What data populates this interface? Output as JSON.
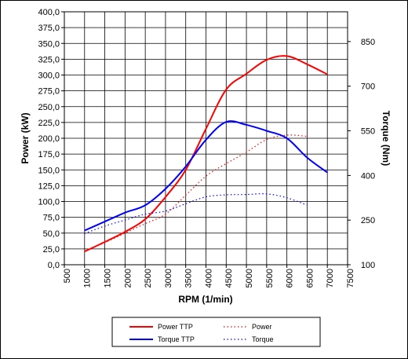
{
  "chart_data": {
    "type": "line",
    "xlabel": "RPM (1/min)",
    "ylabel": "Power (kW)",
    "y2label": "Torque (Nm)",
    "xlim": [
      500,
      7500
    ],
    "ylim": [
      0,
      400
    ],
    "y2lim": [
      100,
      950
    ],
    "x_ticks": [
      "500",
      "1000",
      "1500",
      "2000",
      "2500",
      "3000",
      "3500",
      "4000",
      "4500",
      "5000",
      "5500",
      "6000",
      "6500",
      "7000",
      "7500"
    ],
    "y_ticks": [
      "0,0",
      "25,0",
      "50,0",
      "75,0",
      "100,0",
      "125,0",
      "150,0",
      "175,0",
      "200,0",
      "225,0",
      "250,0",
      "275,0",
      "300,0",
      "325,0",
      "350,0",
      "375,0",
      "400,0"
    ],
    "y2_ticks": [
      "100",
      "250",
      "400",
      "550",
      "700",
      "850"
    ],
    "grid": true,
    "legend": "bottom",
    "series": [
      {
        "name": "Power TTP",
        "axis": "left",
        "color": "#ff0000",
        "style": "solid",
        "x": [
          1000,
          1500,
          2000,
          2500,
          3000,
          3500,
          4000,
          4500,
          5000,
          5500,
          6000,
          6500,
          7000
        ],
        "y": [
          21,
          36,
          52,
          72,
          107,
          150,
          215,
          277,
          302,
          324,
          330,
          317,
          301
        ]
      },
      {
        "name": "Power",
        "axis": "left",
        "color": "#ff0000",
        "style": "dotted",
        "x": [
          1000,
          1500,
          2000,
          2500,
          3000,
          3500,
          4000,
          4500,
          5000,
          5500,
          6000,
          6500
        ],
        "y": [
          22,
          35,
          50,
          65,
          80,
          110,
          140,
          160,
          178,
          198,
          205,
          203
        ]
      },
      {
        "name": "Torque TTP",
        "axis": "right",
        "color": "#0000ff",
        "style": "solid",
        "x": [
          1000,
          1500,
          2000,
          2500,
          3000,
          3500,
          4000,
          4500,
          5000,
          5500,
          6000,
          6500,
          7000
        ],
        "y": [
          215,
          245,
          275,
          300,
          355,
          430,
          520,
          580,
          570,
          550,
          525,
          460,
          410
        ]
      },
      {
        "name": "Torque",
        "axis": "right",
        "color": "#0000ff",
        "style": "dotted",
        "x": [
          1000,
          1500,
          2000,
          2500,
          3000,
          3500,
          4000,
          4500,
          5000,
          5500,
          6000,
          6500
        ],
        "y": [
          205,
          230,
          250,
          270,
          280,
          305,
          328,
          335,
          336,
          338,
          325,
          300
        ]
      }
    ]
  }
}
